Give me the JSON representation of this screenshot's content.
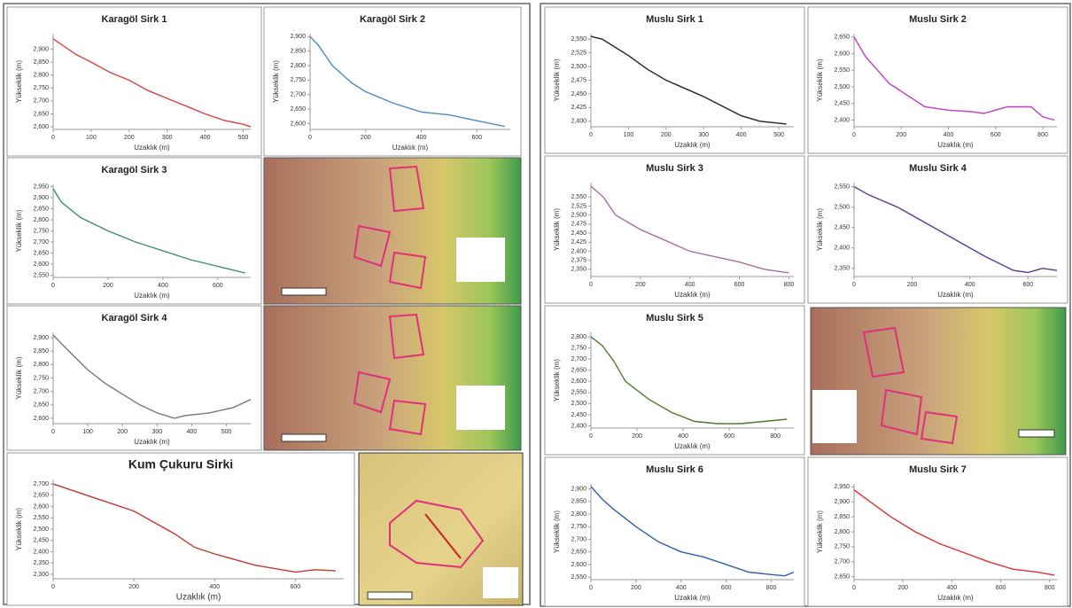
{
  "chart_data": [
    {
      "type": "line",
      "title": "Karagöl Sirk 1",
      "x_label": "Uzaklık (m)",
      "y_label": "Yükseklik (m)",
      "color": "#d64541",
      "x": [
        0,
        20,
        60,
        100,
        150,
        200,
        250,
        300,
        350,
        400,
        450,
        500,
        520
      ],
      "values": [
        2940,
        2920,
        2880,
        2850,
        2810,
        2780,
        2740,
        2710,
        2680,
        2650,
        2625,
        2610,
        2600
      ],
      "xlim": [
        0,
        520
      ],
      "xticks": [
        0,
        100,
        200,
        300,
        400,
        500
      ],
      "ylim": [
        2590,
        2960
      ],
      "yticks": [
        {
          "value": 2600,
          "label": "2,600"
        },
        {
          "value": 2650,
          "label": "2,650"
        },
        {
          "value": 2700,
          "label": "2,700"
        },
        {
          "value": 2750,
          "label": "2,750"
        },
        {
          "value": 2800,
          "label": "2,800"
        },
        {
          "value": 2850,
          "label": "2,850"
        },
        {
          "value": 2900,
          "label": "2,900"
        }
      ]
    },
    {
      "type": "line",
      "title": "Karagöl Sirk 2",
      "x_label": "Uzaklık (m)",
      "y_label": "Yükseklik (m)",
      "color": "#4a8bc4",
      "x": [
        0,
        30,
        80,
        150,
        200,
        300,
        400,
        500,
        600,
        700
      ],
      "values": [
        2900,
        2870,
        2800,
        2740,
        2710,
        2670,
        2640,
        2630,
        2610,
        2590
      ],
      "xlim": [
        0,
        720
      ],
      "xticks": [
        0,
        200,
        400,
        600
      ],
      "ylim": [
        2580,
        2910
      ],
      "yticks": [
        {
          "value": 2600,
          "label": "2,600"
        },
        {
          "value": 2650,
          "label": "2,650"
        },
        {
          "value": 2700,
          "label": "2,700"
        },
        {
          "value": 2750,
          "label": "2,750"
        },
        {
          "value": 2800,
          "label": "2,800"
        },
        {
          "value": 2850,
          "label": "2,850"
        },
        {
          "value": 2900,
          "label": "2,900"
        }
      ]
    },
    {
      "type": "line",
      "title": "Karagöl Sirk 3",
      "x_label": "Uzaklık (m)",
      "y_label": "Yükseklik (m)",
      "color": "#3a8f6f",
      "x": [
        0,
        30,
        100,
        200,
        300,
        400,
        500,
        600,
        700
      ],
      "values": [
        2940,
        2880,
        2810,
        2750,
        2700,
        2660,
        2620,
        2590,
        2560
      ],
      "xlim": [
        0,
        720
      ],
      "xticks": [
        0,
        200,
        400,
        600
      ],
      "ylim": [
        2540,
        2960
      ],
      "yticks": [
        {
          "value": 2550,
          "label": "2,550"
        },
        {
          "value": 2600,
          "label": "2,600"
        },
        {
          "value": 2650,
          "label": "2,650"
        },
        {
          "value": 2700,
          "label": "2,700"
        },
        {
          "value": 2750,
          "label": "2,750"
        },
        {
          "value": 2800,
          "label": "2,800"
        },
        {
          "value": 2850,
          "label": "2,850"
        },
        {
          "value": 2900,
          "label": "2,900"
        },
        {
          "value": 2950,
          "label": "2,950"
        }
      ]
    },
    {
      "type": "line",
      "title": "Karagöl Sirk 4",
      "x_label": "Uzaklık (m)",
      "y_label": "Yükseklik (m)",
      "color": "#777777",
      "x": [
        0,
        30,
        100,
        150,
        200,
        250,
        300,
        350,
        380,
        450,
        520,
        570
      ],
      "values": [
        2910,
        2870,
        2780,
        2730,
        2690,
        2650,
        2620,
        2600,
        2610,
        2620,
        2640,
        2670
      ],
      "xlim": [
        0,
        570
      ],
      "xticks": [
        0,
        100,
        200,
        300,
        400,
        500
      ],
      "ylim": [
        2580,
        2920
      ],
      "yticks": [
        {
          "value": 2600,
          "label": "2,600"
        },
        {
          "value": 2650,
          "label": "2,650"
        },
        {
          "value": 2700,
          "label": "2,700"
        },
        {
          "value": 2750,
          "label": "2,750"
        },
        {
          "value": 2800,
          "label": "2,800"
        },
        {
          "value": 2850,
          "label": "2,850"
        },
        {
          "value": 2900,
          "label": "2,900"
        }
      ]
    },
    {
      "type": "line",
      "title": "Kum Çukuru Sirki",
      "x_label": "Uzaklık (m)",
      "y_label": "Yükseklik (m)",
      "color": "#c0392b",
      "x": [
        0,
        50,
        100,
        200,
        300,
        350,
        400,
        500,
        600,
        650,
        700
      ],
      "values": [
        2700,
        2670,
        2640,
        2580,
        2480,
        2420,
        2390,
        2340,
        2310,
        2320,
        2315
      ],
      "xlim": [
        0,
        720
      ],
      "xticks": [
        0,
        200,
        400,
        600
      ],
      "ylim": [
        2280,
        2720
      ],
      "yticks": [
        {
          "value": 2300,
          "label": "2,300"
        },
        {
          "value": 2350,
          "label": "2,350"
        },
        {
          "value": 2400,
          "label": "2,400"
        },
        {
          "value": 2450,
          "label": "2,450"
        },
        {
          "value": 2500,
          "label": "2,500"
        },
        {
          "value": 2550,
          "label": "2,550"
        },
        {
          "value": 2600,
          "label": "2,600"
        },
        {
          "value": 2650,
          "label": "2,650"
        },
        {
          "value": 2700,
          "label": "2,700"
        }
      ]
    },
    {
      "type": "line",
      "title": "Muslu Sirk 1",
      "x_label": "Uzaklık (m)",
      "y_label": "Yükseklik (m)",
      "color": "#222222",
      "x": [
        0,
        30,
        100,
        150,
        200,
        300,
        400,
        450,
        520
      ],
      "values": [
        2555,
        2550,
        2520,
        2495,
        2475,
        2445,
        2410,
        2400,
        2395
      ],
      "xlim": [
        0,
        540
      ],
      "xticks": [
        0,
        100,
        200,
        300,
        400,
        500
      ],
      "ylim": [
        2390,
        2560
      ],
      "yticks": [
        {
          "value": 2400,
          "label": "2,400"
        },
        {
          "value": 2425,
          "label": "2,425"
        },
        {
          "value": 2450,
          "label": "2,450"
        },
        {
          "value": 2475,
          "label": "2,475"
        },
        {
          "value": 2500,
          "label": "2,500"
        },
        {
          "value": 2525,
          "label": "2,525"
        },
        {
          "value": 2550,
          "label": "2,550"
        }
      ]
    },
    {
      "type": "line",
      "title": "Muslu Sirk 2",
      "x_label": "Uzaklık (m)",
      "y_label": "Yükseklik (m)",
      "color": "#c03cc0",
      "x": [
        0,
        50,
        150,
        300,
        400,
        500,
        550,
        650,
        750,
        800,
        850
      ],
      "values": [
        2650,
        2590,
        2510,
        2440,
        2430,
        2425,
        2420,
        2440,
        2440,
        2410,
        2400
      ],
      "xlim": [
        0,
        860
      ],
      "xticks": [
        0,
        200,
        400,
        600,
        800
      ],
      "ylim": [
        2380,
        2660
      ],
      "yticks": [
        {
          "value": 2400,
          "label": "2,400"
        },
        {
          "value": 2450,
          "label": "2,450"
        },
        {
          "value": 2500,
          "label": "2,500"
        },
        {
          "value": 2550,
          "label": "2,550"
        },
        {
          "value": 2600,
          "label": "2,600"
        },
        {
          "value": 2650,
          "label": "2,650"
        }
      ]
    },
    {
      "type": "line",
      "title": "Muslu Sirk 3",
      "x_label": "Uzaklık (m)",
      "y_label": "Yükseklik (m)",
      "color": "#b06a9c",
      "x": [
        0,
        50,
        100,
        200,
        300,
        400,
        500,
        600,
        700,
        800
      ],
      "values": [
        2580,
        2550,
        2500,
        2460,
        2430,
        2400,
        2385,
        2370,
        2350,
        2340
      ],
      "xlim": [
        0,
        820
      ],
      "xticks": [
        0,
        200,
        400,
        600,
        800
      ],
      "ylim": [
        2330,
        2590
      ],
      "yticks": [
        {
          "value": 2350,
          "label": "2,350"
        },
        {
          "value": 2375,
          "label": "2,375"
        },
        {
          "value": 2400,
          "label": "2,400"
        },
        {
          "value": 2425,
          "label": "2,425"
        },
        {
          "value": 2450,
          "label": "2,450"
        },
        {
          "value": 2475,
          "label": "2,475"
        },
        {
          "value": 2500,
          "label": "2,500"
        },
        {
          "value": 2525,
          "label": "2,525"
        },
        {
          "value": 2550,
          "label": "2,550"
        }
      ]
    },
    {
      "type": "line",
      "title": "Muslu Sirk 4",
      "x_label": "Uzaklık (m)",
      "y_label": "Yükseklik (m)",
      "color": "#5b3a8f",
      "x": [
        0,
        50,
        150,
        250,
        350,
        450,
        550,
        600,
        650,
        700
      ],
      "values": [
        2550,
        2530,
        2500,
        2460,
        2420,
        2380,
        2345,
        2340,
        2350,
        2345
      ],
      "xlim": [
        0,
        700
      ],
      "xticks": [
        0,
        200,
        400,
        600
      ],
      "ylim": [
        2330,
        2560
      ],
      "yticks": [
        {
          "value": 2350,
          "label": "2,350"
        },
        {
          "value": 2400,
          "label": "2,400"
        },
        {
          "value": 2450,
          "label": "2,450"
        },
        {
          "value": 2500,
          "label": "2,500"
        },
        {
          "value": 2550,
          "label": "2,550"
        }
      ]
    },
    {
      "type": "line",
      "title": "Muslu Sirk 5",
      "x_label": "Uzaklık (m)",
      "y_label": "Yükseklik (m)",
      "color": "#4f7a2a",
      "x": [
        0,
        50,
        100,
        150,
        250,
        350,
        450,
        550,
        650,
        750,
        850
      ],
      "values": [
        2800,
        2760,
        2690,
        2600,
        2520,
        2460,
        2420,
        2410,
        2410,
        2420,
        2430
      ],
      "xlim": [
        0,
        880
      ],
      "xticks": [
        0,
        200,
        400,
        600,
        800
      ],
      "ylim": [
        2390,
        2820
      ],
      "yticks": [
        {
          "value": 2400,
          "label": "2,400"
        },
        {
          "value": 2450,
          "label": "2,450"
        },
        {
          "value": 2500,
          "label": "2,500"
        },
        {
          "value": 2550,
          "label": "2,550"
        },
        {
          "value": 2600,
          "label": "2,600"
        },
        {
          "value": 2650,
          "label": "2,650"
        },
        {
          "value": 2700,
          "label": "2,700"
        },
        {
          "value": 2750,
          "label": "2,750"
        },
        {
          "value": 2800,
          "label": "2,800"
        }
      ]
    },
    {
      "type": "line",
      "title": "Muslu Sirk 6",
      "x_label": "Uzaklık (m)",
      "y_label": "Yükseklik (m)",
      "color": "#2f5fa8",
      "x": [
        0,
        50,
        100,
        200,
        300,
        400,
        500,
        600,
        700,
        800,
        860,
        900
      ],
      "values": [
        2910,
        2860,
        2820,
        2750,
        2690,
        2650,
        2630,
        2600,
        2570,
        2560,
        2555,
        2570
      ],
      "xlim": [
        0,
        900
      ],
      "xticks": [
        0,
        200,
        400,
        600,
        800
      ],
      "ylim": [
        2540,
        2920
      ],
      "yticks": [
        {
          "value": 2550,
          "label": "2,550"
        },
        {
          "value": 2600,
          "label": "2,600"
        },
        {
          "value": 2650,
          "label": "2,650"
        },
        {
          "value": 2700,
          "label": "2,700"
        },
        {
          "value": 2750,
          "label": "2,750"
        },
        {
          "value": 2800,
          "label": "2,800"
        },
        {
          "value": 2850,
          "label": "2,850"
        },
        {
          "value": 2900,
          "label": "2,900"
        }
      ]
    },
    {
      "type": "line",
      "title": "Muslu Sirk 7",
      "x_label": "Uzaklık (m)",
      "y_label": "Yükseklik (m)",
      "color": "#e03030",
      "x": [
        0,
        50,
        150,
        250,
        350,
        450,
        550,
        650,
        750,
        820
      ],
      "values": [
        2940,
        2910,
        2850,
        2800,
        2760,
        2730,
        2700,
        2675,
        2665,
        2655
      ],
      "xlim": [
        0,
        830
      ],
      "xticks": [
        0,
        200,
        400,
        600,
        800
      ],
      "ylim": [
        2640,
        2960
      ],
      "yticks": [
        {
          "value": 2650,
          "label": "2,650"
        },
        {
          "value": 2700,
          "label": "2,700"
        },
        {
          "value": 2750,
          "label": "2,750"
        },
        {
          "value": 2800,
          "label": "2,800"
        },
        {
          "value": 2850,
          "label": "2,850"
        },
        {
          "value": 2900,
          "label": "2,900"
        },
        {
          "value": 2950,
          "label": "2,950"
        }
      ]
    }
  ]
}
